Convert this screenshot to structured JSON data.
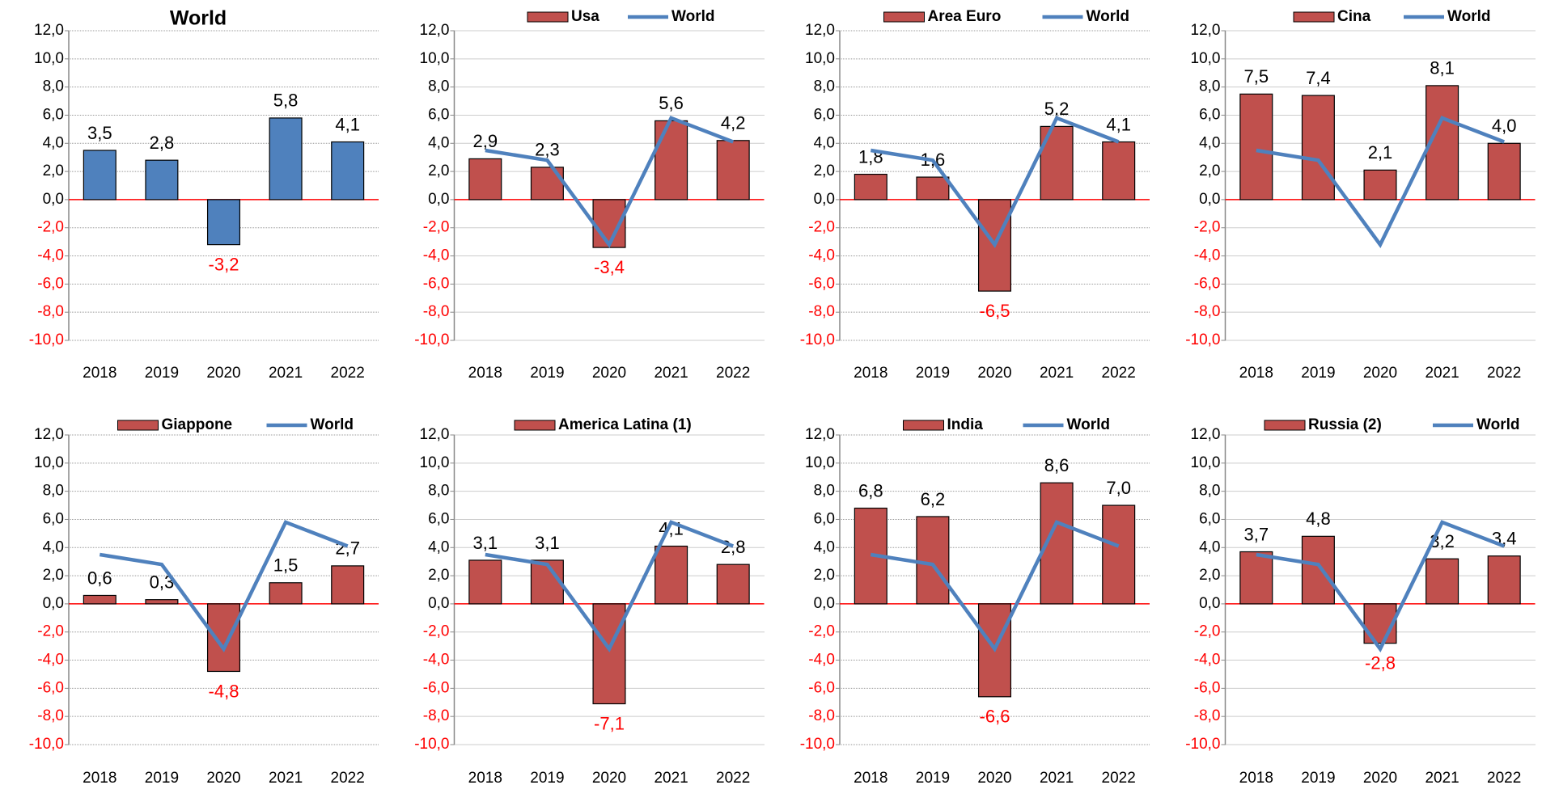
{
  "chart_data": [
    {
      "type": "bar",
      "title": "World",
      "categories": [
        "2018",
        "2019",
        "2020",
        "2021",
        "2022"
      ],
      "series": [
        {
          "type": "bar",
          "color": "#4f81bd",
          "values": [
            3.5,
            2.8,
            -3.2,
            5.8,
            4.1
          ],
          "value_labels": [
            "3,5",
            "2,8",
            "-3,2",
            "5,8",
            "4,1"
          ]
        }
      ],
      "ylim": [
        -10,
        12
      ],
      "yticks": [
        {
          "value": -10,
          "label": "-10,0"
        },
        {
          "value": -8,
          "label": "-8,0"
        },
        {
          "value": -6,
          "label": "-6,0"
        },
        {
          "value": -4,
          "label": "-4,0"
        },
        {
          "value": -2,
          "label": "-2,0"
        },
        {
          "value": 0,
          "label": "0,0"
        },
        {
          "value": 2,
          "label": "2,0"
        },
        {
          "value": 4,
          "label": "4,0"
        },
        {
          "value": 6,
          "label": "6,0"
        },
        {
          "value": 8,
          "label": "8,0"
        },
        {
          "value": 10,
          "label": "10,0"
        },
        {
          "value": 12,
          "label": "12,0"
        }
      ],
      "grid": true
    },
    {
      "type": "bar",
      "categories": [
        "2018",
        "2019",
        "2020",
        "2021",
        "2022"
      ],
      "series": [
        {
          "type": "bar",
          "name": "Usa",
          "color": "#c0504d",
          "values": [
            2.9,
            2.3,
            -3.4,
            5.6,
            4.2
          ],
          "value_labels": [
            "2,9",
            "2,3",
            "-3,4",
            "5,6",
            "4,2"
          ]
        },
        {
          "type": "line",
          "name": "World",
          "color": "#4f81bd",
          "values": [
            3.5,
            2.8,
            -3.2,
            5.8,
            4.1
          ]
        }
      ],
      "ylim": [
        -10,
        12
      ],
      "yticks": [
        {
          "value": -10,
          "label": "-10,0"
        },
        {
          "value": -8,
          "label": "-8,0"
        },
        {
          "value": -6,
          "label": "-6,0"
        },
        {
          "value": -4,
          "label": "-4,0"
        },
        {
          "value": -2,
          "label": "-2,0"
        },
        {
          "value": 0,
          "label": "0,0"
        },
        {
          "value": 2,
          "label": "2,0"
        },
        {
          "value": 4,
          "label": "4,0"
        },
        {
          "value": 6,
          "label": "6,0"
        },
        {
          "value": 8,
          "label": "8,0"
        },
        {
          "value": 10,
          "label": "10,0"
        },
        {
          "value": 12,
          "label": "12,0"
        }
      ],
      "grid": true
    },
    {
      "type": "bar",
      "categories": [
        "2018",
        "2019",
        "2020",
        "2021",
        "2022"
      ],
      "series": [
        {
          "type": "bar",
          "name": "Area Euro",
          "color": "#c0504d",
          "values": [
            1.8,
            1.6,
            -6.5,
            5.2,
            4.1
          ],
          "value_labels": [
            "1,8",
            "1,6",
            "-6,5",
            "5,2",
            "4,1"
          ]
        },
        {
          "type": "line",
          "name": "World",
          "color": "#4f81bd",
          "values": [
            3.5,
            2.8,
            -3.2,
            5.8,
            4.1
          ]
        }
      ],
      "ylim": [
        -10,
        12
      ],
      "yticks": [
        {
          "value": -10,
          "label": "-10,0"
        },
        {
          "value": -8,
          "label": "-8,0"
        },
        {
          "value": -6,
          "label": "-6,0"
        },
        {
          "value": -4,
          "label": "-4,0"
        },
        {
          "value": -2,
          "label": "-2,0"
        },
        {
          "value": 0,
          "label": "0,0"
        },
        {
          "value": 2,
          "label": "2,0"
        },
        {
          "value": 4,
          "label": "4,0"
        },
        {
          "value": 6,
          "label": "6,0"
        },
        {
          "value": 8,
          "label": "8,0"
        },
        {
          "value": 10,
          "label": "10,0"
        },
        {
          "value": 12,
          "label": "12,0"
        }
      ],
      "grid": true
    },
    {
      "type": "bar",
      "categories": [
        "2018",
        "2019",
        "2020",
        "2021",
        "2022"
      ],
      "series": [
        {
          "type": "bar",
          "name": "Cina",
          "color": "#c0504d",
          "values": [
            7.5,
            7.4,
            2.1,
            8.1,
            4.0
          ],
          "value_labels": [
            "7,5",
            "7,4",
            "2,1",
            "8,1",
            "4,0"
          ]
        },
        {
          "type": "line",
          "name": "World",
          "color": "#4f81bd",
          "values": [
            3.5,
            2.8,
            -3.2,
            5.8,
            4.1
          ]
        }
      ],
      "ylim": [
        -10,
        12
      ],
      "yticks": [
        {
          "value": -10,
          "label": "-10,0"
        },
        {
          "value": -8,
          "label": "-8,0"
        },
        {
          "value": -6,
          "label": "-6,0"
        },
        {
          "value": -4,
          "label": "-4,0"
        },
        {
          "value": -2,
          "label": "-2,0"
        },
        {
          "value": 0,
          "label": "0,0"
        },
        {
          "value": 2,
          "label": "2,0"
        },
        {
          "value": 4,
          "label": "4,0"
        },
        {
          "value": 6,
          "label": "6,0"
        },
        {
          "value": 8,
          "label": "8,0"
        },
        {
          "value": 10,
          "label": "10,0"
        },
        {
          "value": 12,
          "label": "12,0"
        }
      ],
      "grid": true
    },
    {
      "type": "bar",
      "categories": [
        "2018",
        "2019",
        "2020",
        "2021",
        "2022"
      ],
      "series": [
        {
          "type": "bar",
          "name": "Giappone",
          "color": "#c0504d",
          "values": [
            0.6,
            0.3,
            -4.8,
            1.5,
            2.7
          ],
          "value_labels": [
            "0,6",
            "0,3",
            "-4,8",
            "1,5",
            "2,7"
          ]
        },
        {
          "type": "line",
          "name": "World",
          "color": "#4f81bd",
          "values": [
            3.5,
            2.8,
            -3.2,
            5.8,
            4.1
          ]
        }
      ],
      "ylim": [
        -10,
        12
      ],
      "yticks": [
        {
          "value": -10,
          "label": "-10,0"
        },
        {
          "value": -8,
          "label": "-8,0"
        },
        {
          "value": -6,
          "label": "-6,0"
        },
        {
          "value": -4,
          "label": "-4,0"
        },
        {
          "value": -2,
          "label": "-2,0"
        },
        {
          "value": 0,
          "label": "0,0"
        },
        {
          "value": 2,
          "label": "2,0"
        },
        {
          "value": 4,
          "label": "4,0"
        },
        {
          "value": 6,
          "label": "6,0"
        },
        {
          "value": 8,
          "label": "8,0"
        },
        {
          "value": 10,
          "label": "10,0"
        },
        {
          "value": 12,
          "label": "12,0"
        }
      ],
      "grid": true
    },
    {
      "type": "bar",
      "categories": [
        "2018",
        "2019",
        "2020",
        "2021",
        "2022"
      ],
      "series": [
        {
          "type": "bar",
          "name": "America Latina (1)",
          "color": "#c0504d",
          "values": [
            3.1,
            3.1,
            -7.1,
            4.1,
            2.8
          ],
          "value_labels": [
            "3,1",
            "3,1",
            "-7,1",
            "4,1",
            "2,8"
          ]
        },
        {
          "type": "line",
          "color": "#4f81bd",
          "values": [
            3.5,
            2.8,
            -3.2,
            5.8,
            4.1
          ]
        }
      ],
      "ylim": [
        -10,
        12
      ],
      "yticks": [
        {
          "value": -10,
          "label": "-10,0"
        },
        {
          "value": -8,
          "label": "-8,0"
        },
        {
          "value": -6,
          "label": "-6,0"
        },
        {
          "value": -4,
          "label": "-4,0"
        },
        {
          "value": -2,
          "label": "-2,0"
        },
        {
          "value": 0,
          "label": "0,0"
        },
        {
          "value": 2,
          "label": "2,0"
        },
        {
          "value": 4,
          "label": "4,0"
        },
        {
          "value": 6,
          "label": "6,0"
        },
        {
          "value": 8,
          "label": "8,0"
        },
        {
          "value": 10,
          "label": "10,0"
        },
        {
          "value": 12,
          "label": "12,0"
        }
      ],
      "grid": true
    },
    {
      "type": "bar",
      "categories": [
        "2018",
        "2019",
        "2020",
        "2021",
        "2022"
      ],
      "series": [
        {
          "type": "bar",
          "name": "India",
          "color": "#c0504d",
          "values": [
            6.8,
            6.2,
            -6.6,
            8.6,
            7.0
          ],
          "value_labels": [
            "6,8",
            "6,2",
            "-6,6",
            "8,6",
            "7,0"
          ]
        },
        {
          "type": "line",
          "name": "World",
          "color": "#4f81bd",
          "values": [
            3.5,
            2.8,
            -3.2,
            5.8,
            4.1
          ]
        }
      ],
      "ylim": [
        -10,
        12
      ],
      "yticks": [
        {
          "value": -10,
          "label": "-10,0"
        },
        {
          "value": -8,
          "label": "-8,0"
        },
        {
          "value": -6,
          "label": "-6,0"
        },
        {
          "value": -4,
          "label": "-4,0"
        },
        {
          "value": -2,
          "label": "-2,0"
        },
        {
          "value": 0,
          "label": "0,0"
        },
        {
          "value": 2,
          "label": "2,0"
        },
        {
          "value": 4,
          "label": "4,0"
        },
        {
          "value": 6,
          "label": "6,0"
        },
        {
          "value": 8,
          "label": "8,0"
        },
        {
          "value": 10,
          "label": "10,0"
        },
        {
          "value": 12,
          "label": "12,0"
        }
      ],
      "grid": true
    },
    {
      "type": "bar",
      "categories": [
        "2018",
        "2019",
        "2020",
        "2021",
        "2022"
      ],
      "series": [
        {
          "type": "bar",
          "name": "Russia (2)",
          "color": "#c0504d",
          "values": [
            3.7,
            4.8,
            -2.8,
            3.2,
            3.4
          ],
          "value_labels": [
            "3,7",
            "4,8",
            "-2,8",
            "3,2",
            "3,4"
          ]
        },
        {
          "type": "line",
          "name": "World",
          "color": "#4f81bd",
          "values": [
            3.5,
            2.8,
            -3.2,
            5.8,
            4.1
          ]
        }
      ],
      "ylim": [
        -10,
        12
      ],
      "yticks": [
        {
          "value": -10,
          "label": "-10,0"
        },
        {
          "value": -8,
          "label": "-8,0"
        },
        {
          "value": -6,
          "label": "-6,0"
        },
        {
          "value": -4,
          "label": "-4,0"
        },
        {
          "value": -2,
          "label": "-2,0"
        },
        {
          "value": 0,
          "label": "0,0"
        },
        {
          "value": 2,
          "label": "2,0"
        },
        {
          "value": 4,
          "label": "4,0"
        },
        {
          "value": 6,
          "label": "6,0"
        },
        {
          "value": 8,
          "label": "8,0"
        },
        {
          "value": 10,
          "label": "10,0"
        },
        {
          "value": 12,
          "label": "12,0"
        }
      ],
      "grid": true
    }
  ]
}
